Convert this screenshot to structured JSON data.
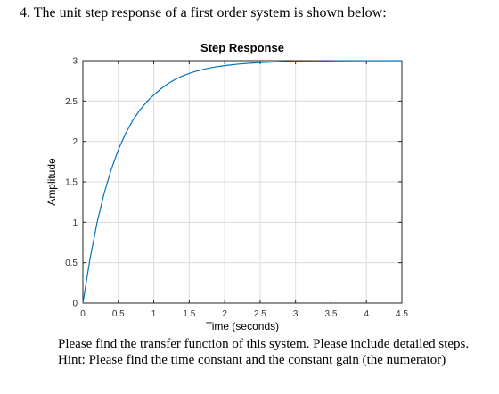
{
  "question": {
    "text": "4. The unit step response of a first order system is shown below:"
  },
  "notes": {
    "line1": "Please find the transfer function of this system. Please include detailed steps.",
    "line2": "Hint: Please find the time constant and the constant gain (the numerator)"
  },
  "chart_data": {
    "type": "line",
    "title": "Step Response",
    "xlabel": "Time (seconds)",
    "ylabel": "Amplitude",
    "xlim": [
      0,
      4.5
    ],
    "ylim": [
      0,
      3
    ],
    "x_ticks": [
      "0",
      "0.5",
      "1",
      "1.5",
      "2",
      "2.5",
      "3",
      "3.5",
      "4",
      "4.5"
    ],
    "y_ticks": [
      "0",
      "0.5",
      "1",
      "1.5",
      "2",
      "2.5",
      "3"
    ],
    "grid": true,
    "series": [
      {
        "color": "#0072BD",
        "x": [
          0,
          0.1,
          0.2,
          0.3,
          0.4,
          0.5,
          0.6,
          0.7,
          0.8,
          0.9,
          1.0,
          1.1,
          1.2,
          1.3,
          1.4,
          1.5,
          1.6,
          1.7,
          1.8,
          1.9,
          2.0,
          2.2,
          2.4,
          2.6,
          2.8,
          3.0,
          3.2,
          3.4,
          3.6,
          3.8,
          4.0,
          4.2,
          4.5
        ],
        "y": [
          0,
          0.544,
          0.995,
          1.358,
          1.652,
          1.897,
          2.093,
          2.255,
          2.384,
          2.489,
          2.574,
          2.651,
          2.715,
          2.767,
          2.808,
          2.842,
          2.87,
          2.892,
          2.911,
          2.926,
          2.938,
          2.958,
          2.971,
          2.98,
          2.987,
          2.991,
          2.994,
          2.996,
          2.997,
          2.998,
          2.999,
          2.999,
          3.0
        ]
      }
    ]
  }
}
